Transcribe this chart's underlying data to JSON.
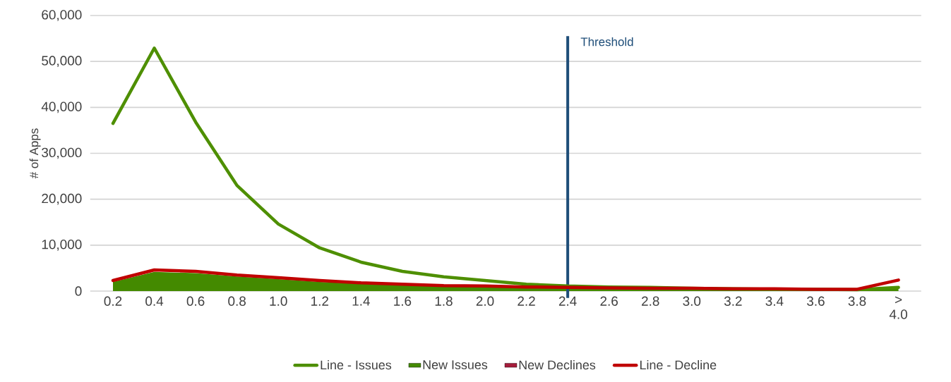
{
  "chart_data": {
    "type": "line",
    "ylabel": "# of Apps",
    "categories": [
      "0.2",
      "0.4",
      "0.6",
      "0.8",
      "1.0",
      "1.2",
      "1.4",
      "1.6",
      "1.8",
      "2.0",
      "2.2",
      "2.4",
      "2.6",
      "2.8",
      "3.0",
      "3.2",
      "3.4",
      "3.6",
      "3.8",
      "> 4.0"
    ],
    "series": [
      {
        "name": "Line - Issues",
        "color": "#4e8f00",
        "values": [
          36500,
          52900,
          36800,
          23000,
          14600,
          9400,
          6300,
          4300,
          3100,
          2300,
          1500,
          1100,
          900,
          800,
          600,
          500,
          400,
          400,
          300,
          800
        ]
      },
      {
        "name": "New Issues",
        "type": "area",
        "color": "#448a00",
        "values": [
          2000,
          4200,
          3900,
          3200,
          2600,
          2000,
          1600,
          1300,
          1100,
          1000,
          800,
          700,
          600,
          500,
          400,
          400,
          300,
          300,
          200,
          700
        ]
      },
      {
        "name": "New Declines",
        "type": "area",
        "color": "#a51c3a",
        "values": [
          null,
          null,
          null,
          null,
          null,
          null,
          null,
          null,
          null,
          null,
          null,
          null,
          null,
          null,
          null,
          null,
          null,
          null,
          null,
          null
        ]
      },
      {
        "name": "Line - Decline",
        "color": "#c00000",
        "values": [
          2300,
          4600,
          4300,
          3500,
          2900,
          2300,
          1800,
          1500,
          1200,
          1100,
          900,
          800,
          700,
          600,
          600,
          500,
          500,
          400,
          400,
          2400
        ]
      }
    ],
    "ylim": [
      0,
      60000
    ],
    "yticks": [
      {
        "value": 0,
        "label": "0"
      },
      {
        "value": 10000,
        "label": "10,000"
      },
      {
        "value": 20000,
        "label": "20,000"
      },
      {
        "value": 30000,
        "label": "30,000"
      },
      {
        "value": 40000,
        "label": "40,000"
      },
      {
        "value": 50000,
        "label": "50,000"
      },
      {
        "value": 60000,
        "label": "60,000"
      }
    ],
    "ref_lines": [
      {
        "axis": "x",
        "value": "2.4",
        "label": "Threshold",
        "color": "#1f4e79"
      }
    ],
    "grid": "y",
    "legend": "bottom"
  }
}
